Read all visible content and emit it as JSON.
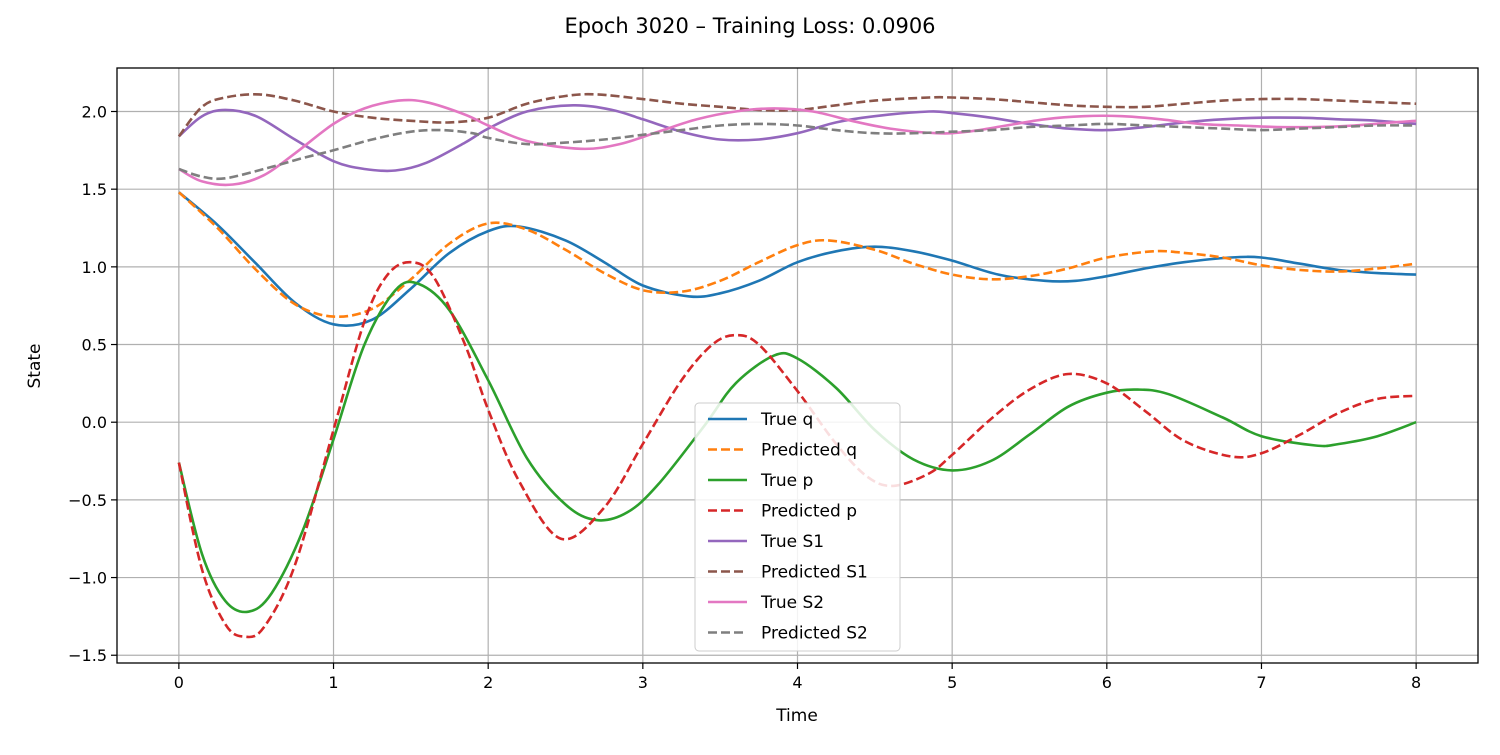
{
  "chart_data": {
    "type": "line",
    "title": "Epoch 3020 – Training Loss: 0.0906",
    "xlabel": "Time",
    "ylabel": "State",
    "xlim": [
      -0.4,
      8.4
    ],
    "ylim": [
      -1.55,
      2.28
    ],
    "xticks": [
      0,
      1,
      2,
      3,
      4,
      5,
      6,
      7,
      8
    ],
    "yticks": [
      -1.5,
      -1.0,
      -0.5,
      0.0,
      0.5,
      1.0,
      1.5,
      2.0
    ],
    "ytick_labels": [
      "−1.5",
      "−1.0",
      "−0.5",
      "0.0",
      "0.5",
      "1.0",
      "1.5",
      "2.0"
    ],
    "grid": true,
    "legend_position": "lower-center",
    "series": [
      {
        "name": "True q",
        "color": "#1f77b4",
        "dash": "solid",
        "x": [
          0,
          0.25,
          0.5,
          0.75,
          1.0,
          1.25,
          1.5,
          1.75,
          2.0,
          2.2,
          2.5,
          2.75,
          3.0,
          3.3,
          3.5,
          3.75,
          4.0,
          4.25,
          4.5,
          4.75,
          5.0,
          5.3,
          5.6,
          5.8,
          6.0,
          6.25,
          6.5,
          6.8,
          7.0,
          7.25,
          7.5,
          7.75,
          8.0
        ],
        "y": [
          1.48,
          1.27,
          1.02,
          0.77,
          0.63,
          0.66,
          0.86,
          1.09,
          1.23,
          1.26,
          1.17,
          1.03,
          0.88,
          0.81,
          0.83,
          0.91,
          1.03,
          1.1,
          1.13,
          1.1,
          1.04,
          0.95,
          0.91,
          0.91,
          0.94,
          0.99,
          1.03,
          1.06,
          1.06,
          1.02,
          0.98,
          0.96,
          0.95
        ]
      },
      {
        "name": "Predicted q",
        "color": "#ff7f0e",
        "dash": "dashed",
        "x": [
          0,
          0.25,
          0.5,
          0.75,
          1.0,
          1.25,
          1.5,
          1.75,
          2.0,
          2.25,
          2.5,
          2.75,
          3.0,
          3.25,
          3.5,
          3.75,
          4.0,
          4.2,
          4.5,
          4.75,
          5.0,
          5.25,
          5.5,
          5.75,
          6.0,
          6.3,
          6.5,
          6.75,
          7.0,
          7.25,
          7.5,
          7.75,
          8.0
        ],
        "y": [
          1.48,
          1.25,
          0.98,
          0.76,
          0.68,
          0.73,
          0.92,
          1.15,
          1.28,
          1.24,
          1.11,
          0.96,
          0.85,
          0.84,
          0.91,
          1.03,
          1.14,
          1.17,
          1.11,
          1.02,
          0.95,
          0.92,
          0.94,
          0.99,
          1.06,
          1.1,
          1.09,
          1.06,
          1.01,
          0.98,
          0.97,
          0.99,
          1.02
        ]
      },
      {
        "name": "True p",
        "color": "#2ca02c",
        "dash": "solid",
        "x": [
          0,
          0.15,
          0.3,
          0.45,
          0.6,
          0.8,
          1.0,
          1.2,
          1.4,
          1.55,
          1.75,
          2.0,
          2.25,
          2.5,
          2.7,
          2.9,
          3.1,
          3.4,
          3.6,
          3.85,
          4.0,
          4.25,
          4.5,
          4.75,
          5.0,
          5.25,
          5.5,
          5.75,
          6.0,
          6.2,
          6.4,
          6.75,
          7.0,
          7.35,
          7.5,
          7.75,
          8.0
        ],
        "y": [
          -0.26,
          -0.85,
          -1.15,
          -1.22,
          -1.1,
          -0.7,
          -0.11,
          0.5,
          0.85,
          0.89,
          0.72,
          0.27,
          -0.23,
          -0.53,
          -0.63,
          -0.58,
          -0.4,
          -0.02,
          0.25,
          0.43,
          0.41,
          0.22,
          -0.05,
          -0.24,
          -0.31,
          -0.25,
          -0.08,
          0.1,
          0.19,
          0.21,
          0.18,
          0.03,
          -0.09,
          -0.15,
          -0.14,
          -0.09,
          0.0
        ]
      },
      {
        "name": "Predicted p",
        "color": "#d62728",
        "dash": "dashed",
        "x": [
          0,
          0.15,
          0.3,
          0.42,
          0.55,
          0.75,
          1.0,
          1.2,
          1.35,
          1.5,
          1.65,
          1.85,
          2.0,
          2.2,
          2.47,
          2.75,
          3.0,
          3.25,
          3.45,
          3.6,
          3.75,
          4.0,
          4.25,
          4.45,
          4.62,
          4.85,
          5.0,
          5.25,
          5.5,
          5.75,
          6.0,
          6.25,
          6.5,
          6.8,
          7.0,
          7.25,
          7.5,
          7.75,
          8.0
        ],
        "y": [
          -0.26,
          -0.95,
          -1.3,
          -1.38,
          -1.32,
          -0.92,
          -0.05,
          0.65,
          0.95,
          1.03,
          0.93,
          0.5,
          0.08,
          -0.38,
          -0.75,
          -0.55,
          -0.14,
          0.27,
          0.5,
          0.56,
          0.5,
          0.2,
          -0.14,
          -0.35,
          -0.41,
          -0.33,
          -0.21,
          0.02,
          0.21,
          0.31,
          0.25,
          0.07,
          -0.12,
          -0.22,
          -0.2,
          -0.08,
          0.06,
          0.15,
          0.17
        ]
      },
      {
        "name": "True S1",
        "color": "#9467bd",
        "dash": "solid",
        "x": [
          0,
          0.15,
          0.3,
          0.5,
          0.75,
          1.0,
          1.2,
          1.4,
          1.6,
          1.85,
          2.0,
          2.25,
          2.55,
          2.8,
          3.0,
          3.25,
          3.5,
          3.75,
          4.0,
          4.25,
          4.5,
          4.85,
          5.0,
          5.25,
          5.5,
          5.75,
          6.0,
          6.25,
          6.5,
          6.75,
          7.0,
          7.25,
          7.5,
          7.75,
          8.0
        ],
        "y": [
          1.84,
          1.97,
          2.01,
          1.97,
          1.82,
          1.68,
          1.63,
          1.62,
          1.67,
          1.8,
          1.89,
          2.0,
          2.04,
          2.01,
          1.95,
          1.87,
          1.82,
          1.82,
          1.86,
          1.93,
          1.97,
          2.0,
          1.99,
          1.96,
          1.92,
          1.89,
          1.88,
          1.9,
          1.93,
          1.95,
          1.96,
          1.96,
          1.95,
          1.94,
          1.92
        ]
      },
      {
        "name": "Predicted S1",
        "color": "#8c564b",
        "dash": "dashed",
        "x": [
          0,
          0.15,
          0.3,
          0.52,
          0.75,
          1.0,
          1.25,
          1.5,
          1.75,
          2.0,
          2.25,
          2.5,
          2.7,
          3.0,
          3.25,
          3.5,
          3.75,
          4.0,
          4.25,
          4.5,
          4.85,
          5.0,
          5.25,
          5.5,
          5.75,
          6.0,
          6.25,
          6.5,
          6.75,
          7.0,
          7.25,
          7.5,
          7.75,
          8.0
        ],
        "y": [
          1.84,
          2.03,
          2.09,
          2.11,
          2.07,
          2.0,
          1.96,
          1.94,
          1.93,
          1.96,
          2.05,
          2.1,
          2.11,
          2.08,
          2.05,
          2.03,
          2.01,
          2.01,
          2.04,
          2.07,
          2.09,
          2.09,
          2.08,
          2.06,
          2.04,
          2.03,
          2.03,
          2.05,
          2.07,
          2.08,
          2.08,
          2.07,
          2.06,
          2.05
        ]
      },
      {
        "name": "True S2",
        "color": "#e377c2",
        "dash": "solid",
        "x": [
          0,
          0.15,
          0.35,
          0.55,
          0.75,
          1.0,
          1.2,
          1.42,
          1.6,
          1.85,
          2.0,
          2.25,
          2.6,
          2.85,
          3.1,
          3.35,
          3.6,
          3.85,
          4.1,
          4.35,
          4.6,
          4.9,
          5.1,
          5.35,
          5.6,
          5.85,
          6.1,
          6.35,
          6.6,
          6.85,
          7.1,
          7.35,
          7.6,
          7.85,
          8.0
        ],
        "y": [
          1.63,
          1.55,
          1.53,
          1.59,
          1.73,
          1.92,
          2.02,
          2.07,
          2.06,
          1.98,
          1.91,
          1.81,
          1.76,
          1.79,
          1.87,
          1.95,
          2.0,
          2.02,
          2.0,
          1.94,
          1.89,
          1.86,
          1.87,
          1.91,
          1.95,
          1.97,
          1.97,
          1.95,
          1.92,
          1.91,
          1.9,
          1.9,
          1.91,
          1.93,
          1.94
        ]
      },
      {
        "name": "Predicted S2",
        "color": "#7f7f7f",
        "dash": "dashed",
        "x": [
          0,
          0.15,
          0.3,
          0.55,
          0.8,
          1.0,
          1.25,
          1.5,
          1.7,
          1.9,
          2.0,
          2.25,
          2.5,
          2.75,
          3.0,
          3.25,
          3.5,
          3.75,
          4.0,
          4.25,
          4.5,
          4.75,
          5.0,
          5.25,
          5.5,
          5.75,
          6.0,
          6.25,
          6.5,
          6.75,
          7.0,
          7.25,
          7.5,
          7.75,
          8.0
        ],
        "y": [
          1.63,
          1.58,
          1.57,
          1.63,
          1.7,
          1.75,
          1.82,
          1.87,
          1.88,
          1.86,
          1.83,
          1.79,
          1.8,
          1.82,
          1.85,
          1.88,
          1.91,
          1.92,
          1.91,
          1.88,
          1.86,
          1.86,
          1.87,
          1.88,
          1.9,
          1.91,
          1.92,
          1.91,
          1.9,
          1.89,
          1.88,
          1.89,
          1.9,
          1.91,
          1.91
        ]
      }
    ]
  }
}
